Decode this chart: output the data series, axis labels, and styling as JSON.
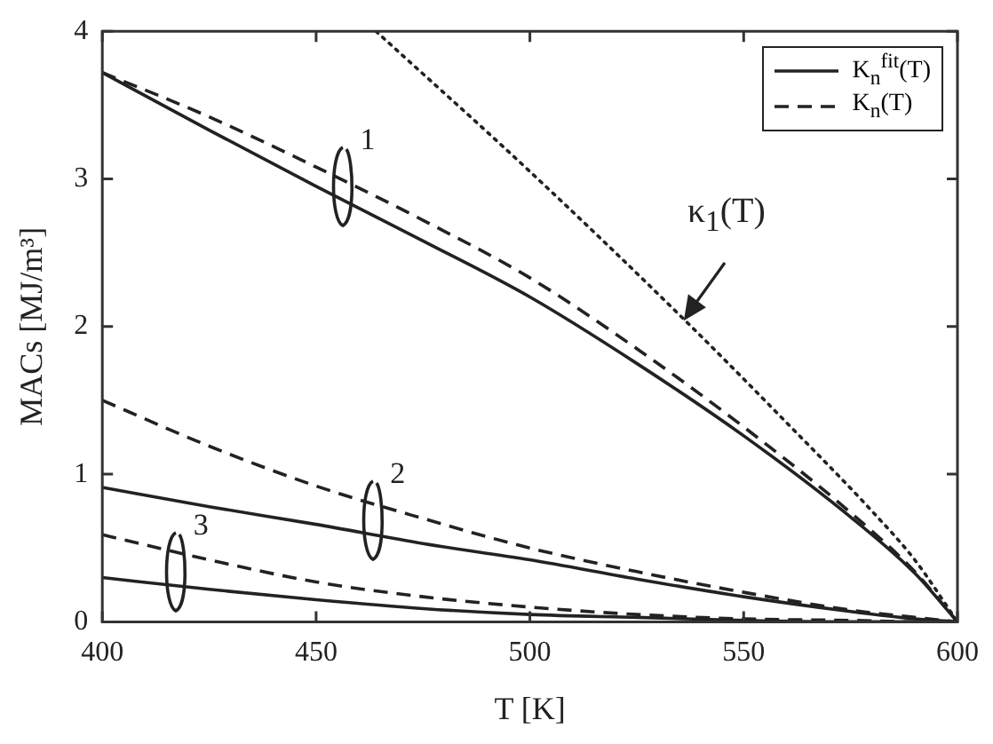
{
  "chart_data": {
    "type": "line",
    "xlabel": "T [K]",
    "ylabel": "MACs [MJ/m³]",
    "xlim": [
      400,
      600
    ],
    "xticks": [
      400,
      450,
      500,
      550,
      600
    ],
    "ylim": [
      0,
      4
    ],
    "yticks": [
      0,
      1,
      2,
      3,
      4
    ],
    "grid": false,
    "legend": "top right",
    "marker": "none",
    "x": [
      400,
      425,
      450,
      475,
      500,
      525,
      550,
      575,
      590,
      600
    ],
    "series": [
      {
        "name": "K$_{n}$$^{fit}$(T)",
        "color": "#222222",
        "line_style": "solid",
        "values": [
          3.72,
          3.33,
          2.95,
          2.58,
          2.2,
          1.75,
          1.26,
          0.71,
          0.33,
          0
        ]
      },
      {
        "name": "K$_{n}$(T)",
        "color": "#222222",
        "line_style": "dashed",
        "values": [
          3.72,
          3.42,
          3.08,
          2.72,
          2.33,
          1.85,
          1.32,
          0.74,
          0.34,
          0
        ]
      },
      {
        "color": "#222222",
        "line_style": "solid",
        "values": [
          0.91,
          0.78,
          0.66,
          0.53,
          0.42,
          0.29,
          0.17,
          0.07,
          0.02,
          0
        ]
      },
      {
        "color": "#222222",
        "line_style": "dashed",
        "values": [
          1.5,
          1.19,
          0.92,
          0.7,
          0.5,
          0.34,
          0.2,
          0.08,
          0.03,
          0
        ]
      },
      {
        "color": "#222222",
        "line_style": "solid",
        "values": [
          0.3,
          0.22,
          0.15,
          0.09,
          0.05,
          0.03,
          0.01,
          0,
          0,
          0
        ]
      },
      {
        "color": "#222222",
        "line_style": "dashed",
        "values": [
          0.59,
          0.42,
          0.27,
          0.17,
          0.1,
          0.05,
          0.02,
          0.01,
          0,
          0
        ]
      },
      {
        "name": "κ$_{1}$(T)",
        "color": "#222222",
        "line_style": "dotted",
        "x": [
          464,
          500,
          536,
          560,
          580,
          590,
          600
        ],
        "values": [
          4,
          3.05,
          2.05,
          1.35,
          0.75,
          0.42,
          0
        ]
      }
    ],
    "annotations": [
      {
        "text": "1",
        "x": 457,
        "y": 2.85
      },
      {
        "text": "2",
        "x": 464,
        "y": 0.59
      },
      {
        "text": "3",
        "x": 418,
        "y": 0.24
      }
    ]
  }
}
